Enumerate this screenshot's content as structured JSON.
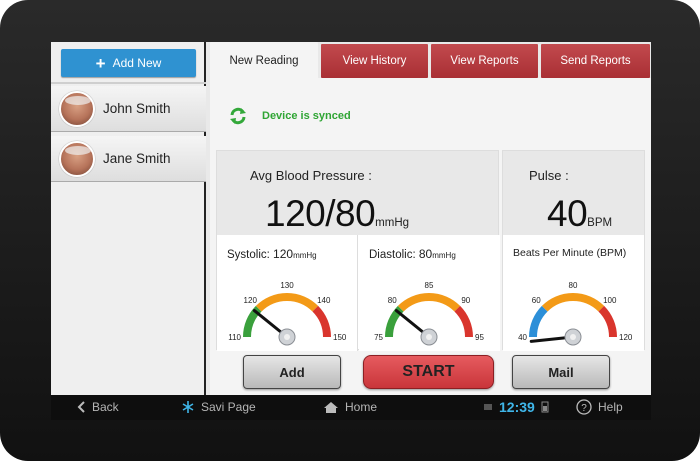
{
  "sidebar": {
    "add_button": "Add New",
    "users": [
      {
        "name": "John Smith"
      },
      {
        "name": "Jane Smith"
      }
    ]
  },
  "tabs": [
    {
      "label": "New Reading",
      "active": true
    },
    {
      "label": "View History",
      "active": false
    },
    {
      "label": "View Reports",
      "active": false
    },
    {
      "label": "Send Reports",
      "active": false
    }
  ],
  "status": {
    "sync_text": "Device is synced"
  },
  "blood_pressure": {
    "title": "Avg Blood Pressure :",
    "value": "120/80",
    "unit": "mmHg",
    "systolic": {
      "label": "Systolic:",
      "value": "120",
      "unit": "mmHg",
      "ticks": [
        "110",
        "120",
        "130",
        "140",
        "150"
      ],
      "reading": 120,
      "range": [
        110,
        150
      ]
    },
    "diastolic": {
      "label": "Diastolic:",
      "value": "80",
      "unit": "mmHg",
      "ticks": [
        "75",
        "80",
        "85",
        "90",
        "95"
      ],
      "reading": 80,
      "range": [
        75,
        95
      ]
    }
  },
  "pulse": {
    "title": "Pulse :",
    "value": "40",
    "unit": "BPM",
    "gauge_label": "Beats Per Minute (BPM)",
    "ticks": [
      "40",
      "60",
      "80",
      "100",
      "120"
    ],
    "reading": 40,
    "range": [
      40,
      120
    ]
  },
  "buttons": {
    "add": "Add",
    "start": "START",
    "mail": "Mail"
  },
  "navbar": {
    "back": "Back",
    "app": "Savi Page",
    "home": "Home",
    "time": "12:39",
    "help": "Help"
  },
  "colors": {
    "tab_red": "#b0353a",
    "accent_blue": "#2f92d1",
    "sync_green": "#2fa534",
    "start_red": "#d9474c",
    "clock_blue": "#3fb6e9"
  }
}
